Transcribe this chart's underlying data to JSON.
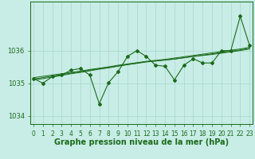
{
  "xlabel": "Graphe pression niveau de la mer (hPa)",
  "x": [
    0,
    1,
    2,
    3,
    4,
    5,
    6,
    7,
    8,
    9,
    10,
    11,
    12,
    13,
    14,
    15,
    16,
    17,
    18,
    19,
    20,
    21,
    22,
    23
  ],
  "y_main": [
    1035.15,
    1035.0,
    1035.2,
    1035.25,
    1035.4,
    1035.45,
    1035.25,
    1034.37,
    1035.02,
    1035.35,
    1035.82,
    1036.0,
    1035.82,
    1035.55,
    1035.52,
    1035.1,
    1035.55,
    1035.75,
    1035.62,
    1035.62,
    1036.0,
    1036.0,
    1037.05,
    1036.15
  ],
  "y_trend1": [
    1035.1,
    1035.14,
    1035.19,
    1035.24,
    1035.29,
    1035.33,
    1035.38,
    1035.43,
    1035.47,
    1035.52,
    1035.57,
    1035.61,
    1035.66,
    1035.68,
    1035.71,
    1035.74,
    1035.78,
    1035.82,
    1035.85,
    1035.88,
    1035.92,
    1035.96,
    1036.0,
    1036.05
  ],
  "y_trend2": [
    1035.13,
    1035.17,
    1035.22,
    1035.26,
    1035.31,
    1035.35,
    1035.4,
    1035.44,
    1035.49,
    1035.53,
    1035.57,
    1035.61,
    1035.65,
    1035.68,
    1035.71,
    1035.74,
    1035.78,
    1035.82,
    1035.86,
    1035.9,
    1035.94,
    1035.98,
    1036.02,
    1036.07
  ],
  "y_trend3": [
    1035.17,
    1035.21,
    1035.25,
    1035.29,
    1035.33,
    1035.37,
    1035.42,
    1035.46,
    1035.5,
    1035.55,
    1035.59,
    1035.63,
    1035.67,
    1035.7,
    1035.73,
    1035.77,
    1035.81,
    1035.85,
    1035.89,
    1035.93,
    1035.97,
    1036.01,
    1036.05,
    1036.1
  ],
  "ylim": [
    1033.75,
    1037.5
  ],
  "yticks": [
    1034,
    1035,
    1036
  ],
  "xticks": [
    0,
    1,
    2,
    3,
    4,
    5,
    6,
    7,
    8,
    9,
    10,
    11,
    12,
    13,
    14,
    15,
    16,
    17,
    18,
    19,
    20,
    21,
    22,
    23
  ],
  "bg_color": "#c8ece6",
  "line_color": "#1a6b1a",
  "grid_color": "#a8d8cc",
  "label_color": "#1a6b1a",
  "tick_fontsize": 5.5,
  "ytick_fontsize": 6.0,
  "xlabel_fontsize": 7.0
}
